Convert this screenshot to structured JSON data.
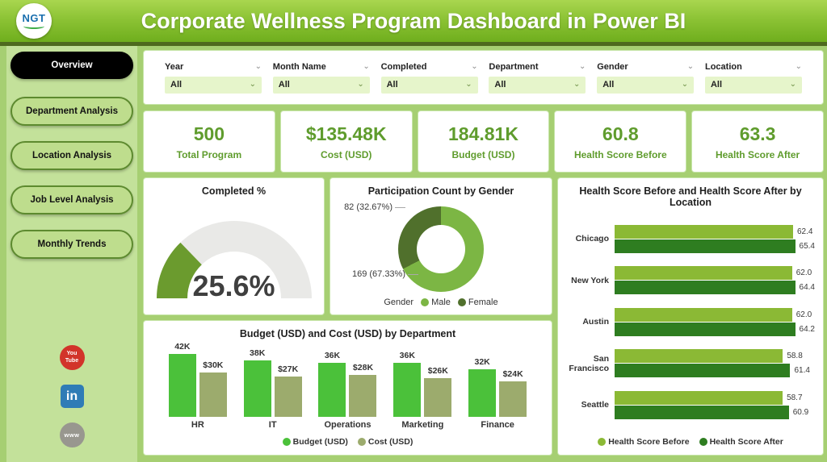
{
  "header": {
    "logo_text": "NGT",
    "title": "Corporate Wellness Program Dashboard in Power BI"
  },
  "sidebar": {
    "items": [
      {
        "label": "Overview",
        "active": true
      },
      {
        "label": "Department Analysis",
        "active": false
      },
      {
        "label": "Location Analysis",
        "active": false
      },
      {
        "label": "Job Level Analysis",
        "active": false
      },
      {
        "label": "Monthly Trends",
        "active": false
      }
    ],
    "social": [
      {
        "name": "youtube",
        "line1": "You",
        "line2": "Tube"
      },
      {
        "name": "linkedin",
        "label": "in"
      },
      {
        "name": "website",
        "label": "www"
      }
    ]
  },
  "filters": [
    {
      "label": "Year",
      "value": "All"
    },
    {
      "label": "Month Name",
      "value": "All"
    },
    {
      "label": "Completed",
      "value": "All"
    },
    {
      "label": "Department",
      "value": "All"
    },
    {
      "label": "Gender",
      "value": "All"
    },
    {
      "label": "Location",
      "value": "All"
    }
  ],
  "kpis": [
    {
      "value": "500",
      "label": "Total Program"
    },
    {
      "value": "$135.48K",
      "label": "Cost (USD)"
    },
    {
      "value": "184.81K",
      "label": "Budget (USD)"
    },
    {
      "value": "60.8",
      "label": "Health Score Before"
    },
    {
      "value": "63.3",
      "label": "Health Score After"
    }
  ],
  "colors": {
    "header_green": "#8cc335",
    "accent_green": "#5f9c2d",
    "gauge_fill": "#6b9b2e",
    "gauge_track": "#e9e9e7",
    "male_green": "#7cb644",
    "female_green": "#50702c",
    "before_green": "#8bb935",
    "after_green": "#2e7d20",
    "budget_green": "#4bc13a",
    "cost_olive": "#9cab6d"
  },
  "chart_data": [
    {
      "id": "completed_gauge",
      "type": "gauge",
      "title": "Completed %",
      "value": 25.6,
      "min": 0,
      "max": 100,
      "display": "25.6%",
      "fill_color": "#6b9b2e",
      "track_color": "#e9e9e7"
    },
    {
      "id": "participation_by_gender",
      "type": "pie",
      "title": "Participation Count by Gender",
      "legend_title": "Gender",
      "legend_position": "bottom",
      "slices": [
        {
          "label": "Male",
          "value": 169,
          "pct": 67.33,
          "display": "169 (67.33%)",
          "color": "#7cb644"
        },
        {
          "label": "Female",
          "value": 82,
          "pct": 32.67,
          "display": "82 (32.67%)",
          "color": "#50702c"
        }
      ]
    },
    {
      "id": "health_score_by_location",
      "type": "bar",
      "orientation": "horizontal",
      "title": "Health Score Before and Health Score After by Location",
      "categories": [
        "Chicago",
        "New York",
        "Austin",
        "San Francisco",
        "Seattle"
      ],
      "series": [
        {
          "name": "Health Score Before",
          "color": "#8bb935",
          "values": [
            62.4,
            62.0,
            62.0,
            58.8,
            58.7
          ],
          "labels": [
            "62.4",
            "62.0",
            "62.0",
            "58.8",
            "58.7"
          ]
        },
        {
          "name": "Health Score After",
          "color": "#2e7d20",
          "values": [
            65.4,
            64.4,
            64.2,
            61.4,
            60.9
          ],
          "labels": [
            "65.4",
            "64.4",
            "64.2",
            "61.4",
            "60.9"
          ]
        }
      ],
      "xlim": [
        0,
        70
      ],
      "legend_position": "bottom"
    },
    {
      "id": "budget_cost_by_department",
      "type": "bar",
      "orientation": "vertical",
      "title": "Budget (USD) and Cost (USD) by Department",
      "categories": [
        "HR",
        "IT",
        "Operations",
        "Marketing",
        "Finance"
      ],
      "series": [
        {
          "name": "Budget (USD)",
          "color": "#4bc13a",
          "values": [
            42000,
            38000,
            36000,
            36000,
            32000
          ],
          "labels": [
            "42K",
            "38K",
            "36K",
            "36K",
            "32K"
          ]
        },
        {
          "name": "Cost (USD)",
          "color": "#9cab6d",
          "values": [
            30000,
            27000,
            28000,
            26000,
            24000
          ],
          "labels": [
            "$30K",
            "$27K",
            "$28K",
            "$26K",
            "$24K"
          ]
        }
      ],
      "ylim": [
        0,
        46000
      ],
      "legend_position": "bottom"
    }
  ]
}
